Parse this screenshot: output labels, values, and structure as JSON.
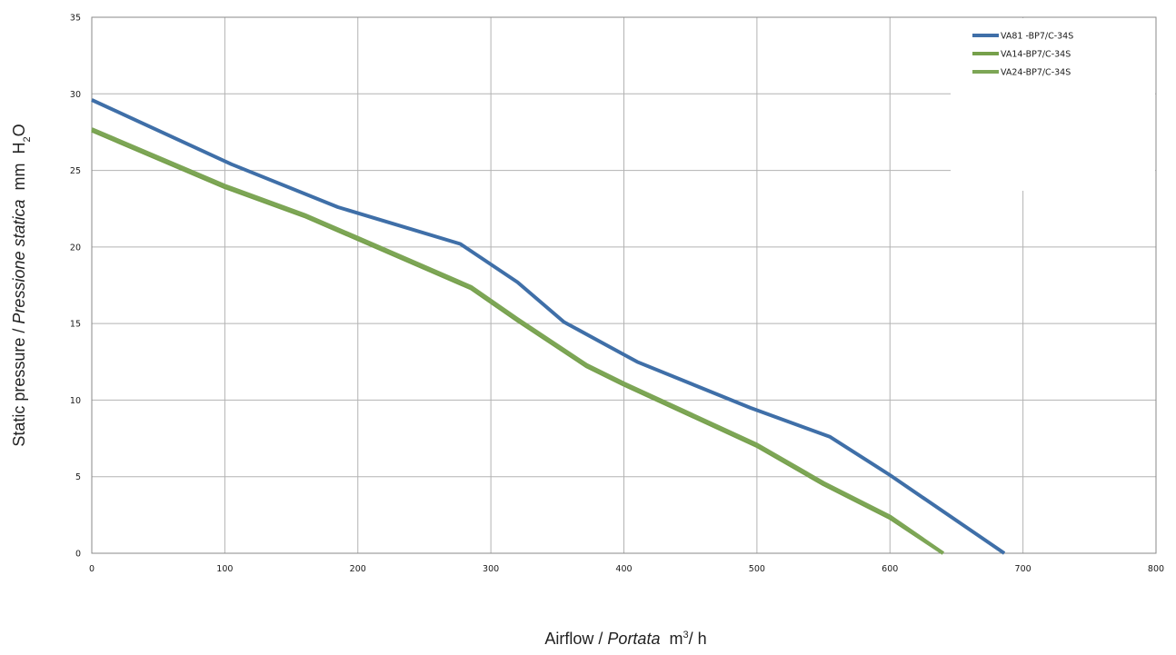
{
  "chart_data": {
    "type": "line",
    "title": "",
    "xlabel": {
      "main": "Airflow",
      "sep": " / ",
      "italic": "Portata",
      "unit_pre": "  m",
      "unit_sup": "3",
      "unit_post": "/ h"
    },
    "ylabel": {
      "main": "Static pressure",
      "sep": " / ",
      "italic": "Pressione statica",
      "unit_pre": "  mm  H",
      "unit_sub": "2",
      "unit_post": "O"
    },
    "xlim": [
      0,
      800
    ],
    "ylim": [
      0,
      35
    ],
    "xticks": [
      "0",
      "100",
      "200",
      "300",
      "400",
      "500",
      "600",
      "700",
      "800"
    ],
    "yticks": [
      "0",
      "5",
      "10",
      "15",
      "20",
      "25",
      "30",
      "35"
    ],
    "grid": true,
    "legend_position": "top-right",
    "series": [
      {
        "name": "VA81   -BP7/C-34S",
        "color": "#3F6FA8",
        "x": [
          0,
          105,
          185,
          277,
          320,
          355,
          410,
          495,
          555,
          600,
          686
        ],
        "y": [
          29.6,
          25.4,
          22.6,
          20.2,
          17.7,
          15.1,
          12.5,
          9.5,
          7.6,
          5.1,
          0
        ]
      },
      {
        "name": "VA14-BP7/C-34S",
        "color": "#76A04B",
        "x": [
          0,
          100,
          160,
          200,
          285,
          320,
          372,
          400,
          500,
          550,
          600,
          640
        ],
        "y": [
          27.6,
          23.9,
          22.0,
          20.5,
          17.3,
          15.2,
          12.2,
          11.0,
          7.0,
          4.5,
          2.3,
          0
        ]
      },
      {
        "name": "VA24-BP7/C-34S",
        "color": "#7DA656",
        "x": [
          0,
          100,
          160,
          200,
          285,
          320,
          372,
          400,
          500,
          550,
          600,
          640
        ],
        "y": [
          27.7,
          24.0,
          22.1,
          20.6,
          17.4,
          15.3,
          12.3,
          11.1,
          7.1,
          4.6,
          2.4,
          0
        ]
      }
    ]
  }
}
